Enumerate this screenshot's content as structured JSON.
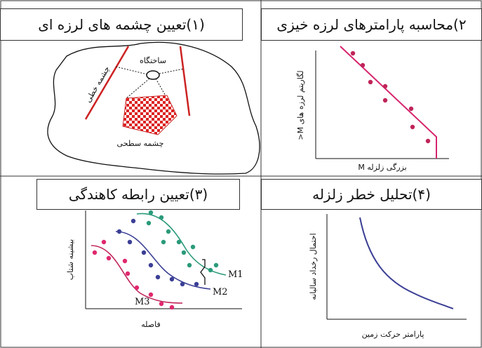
{
  "panels": [
    {
      "title": "(۱)تعیین چشمه های لرزه ای",
      "site_label": "ساختگاه",
      "line_source_label": "چشمه خطی",
      "area_source_label": "چشمه سطحی"
    },
    {
      "title": "۲)محاسبه پارامترهای لرزه خیزی",
      "x_label": "بزرگی زلزله M",
      "y_label": "لگاریتم لرزه های M<"
    },
    {
      "title": "(۳)تعیین رابطه کاهندگی",
      "x_label": "فاصله",
      "y_label": "بیشینه شتاب",
      "curves": [
        "M1",
        "M2",
        "M3"
      ]
    },
    {
      "title": "(۴)تحلیل خطر زلزله",
      "x_label": "پارامتر حرکت زمین",
      "y_label": "احتمال رخداد سالیانه"
    }
  ]
}
